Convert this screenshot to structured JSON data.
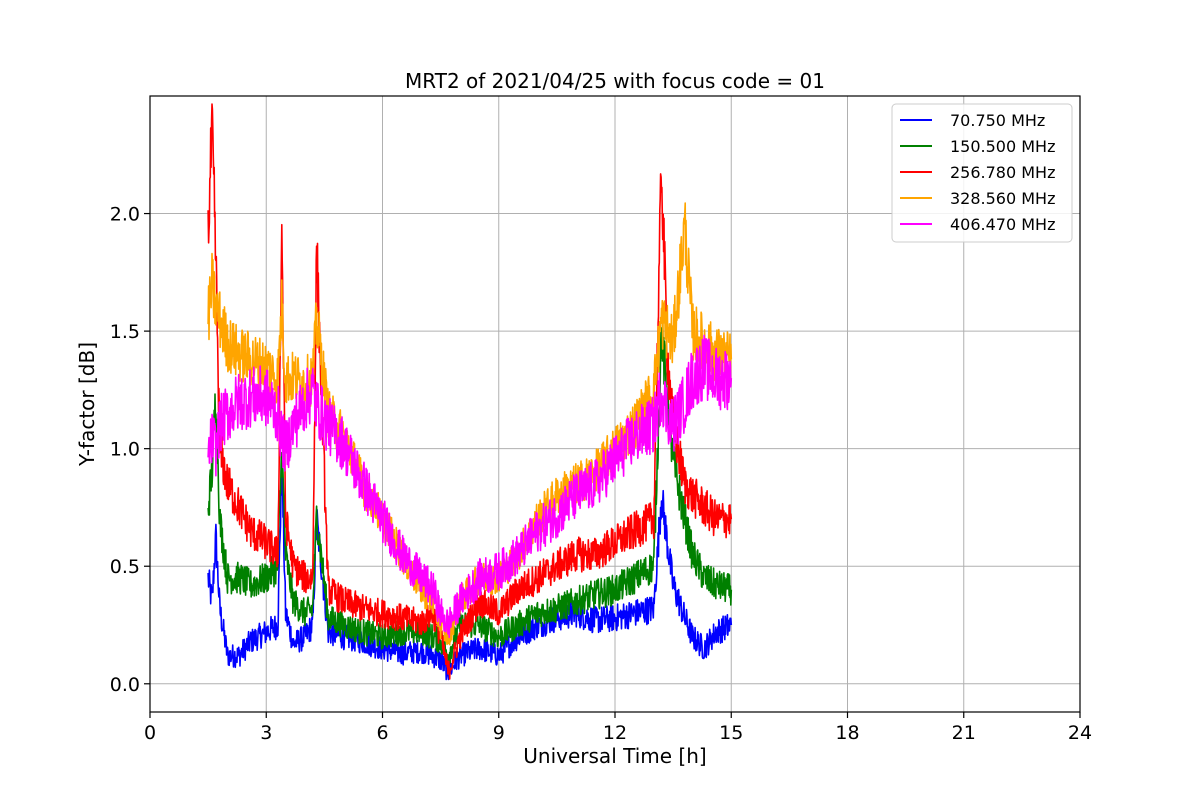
{
  "chart_data": {
    "type": "line",
    "title": "MRT2 of 2021/04/25 with focus code = 01",
    "xlabel": "Universal Time [h]",
    "ylabel": "Y-factor [dB]",
    "xlim": [
      0,
      24
    ],
    "ylim": [
      -0.12,
      2.5
    ],
    "xticks": [
      0,
      3,
      6,
      9,
      12,
      15,
      18,
      21,
      24
    ],
    "xtick_labels": [
      "0",
      "3",
      "6",
      "9",
      "12",
      "15",
      "18",
      "21",
      "24"
    ],
    "yticks": [
      0.0,
      0.5,
      1.0,
      1.5,
      2.0
    ],
    "ytick_labels": [
      "0.0",
      "0.5",
      "1.0",
      "1.5",
      "2.0"
    ],
    "grid": true,
    "legend_position": "top-right",
    "x": [
      1.5,
      1.6,
      1.7,
      1.8,
      2.0,
      2.3,
      2.6,
      3.0,
      3.3,
      3.4,
      3.5,
      3.7,
      4.0,
      4.2,
      4.3,
      4.6,
      5.0,
      5.5,
      6.0,
      6.5,
      7.0,
      7.3,
      7.5,
      7.7,
      8.0,
      8.5,
      9.0,
      9.5,
      10.0,
      10.5,
      11.0,
      11.5,
      12.0,
      12.5,
      13.0,
      13.2,
      13.35,
      13.5,
      13.8,
      14.0,
      14.3,
      14.6,
      15.0
    ],
    "series": [
      {
        "name": "  70.750 MHz",
        "color": "#0000ff",
        "values": [
          0.45,
          0.35,
          0.62,
          0.32,
          0.12,
          0.12,
          0.18,
          0.22,
          0.25,
          0.95,
          0.3,
          0.17,
          0.2,
          0.25,
          0.7,
          0.22,
          0.2,
          0.18,
          0.15,
          0.13,
          0.14,
          0.12,
          0.1,
          0.05,
          0.12,
          0.15,
          0.12,
          0.2,
          0.25,
          0.28,
          0.3,
          0.27,
          0.28,
          0.3,
          0.32,
          0.8,
          0.6,
          0.42,
          0.28,
          0.2,
          0.15,
          0.22,
          0.25
        ]
      },
      {
        "name": "150.500 MHz",
        "color": "#008000",
        "values": [
          0.75,
          0.9,
          1.25,
          0.7,
          0.45,
          0.45,
          0.42,
          0.45,
          0.5,
          1.0,
          0.55,
          0.35,
          0.3,
          0.32,
          0.72,
          0.28,
          0.25,
          0.22,
          0.2,
          0.22,
          0.22,
          0.2,
          0.18,
          0.12,
          0.25,
          0.25,
          0.2,
          0.25,
          0.3,
          0.32,
          0.35,
          0.38,
          0.4,
          0.45,
          0.5,
          1.5,
          1.2,
          0.95,
          0.7,
          0.55,
          0.45,
          0.42,
          0.4
        ]
      },
      {
        "name": "256.780 MHz",
        "color": "#ff0000",
        "values": [
          1.9,
          2.35,
          1.8,
          1.0,
          0.85,
          0.75,
          0.65,
          0.6,
          0.55,
          1.95,
          0.7,
          0.5,
          0.45,
          0.45,
          1.85,
          0.4,
          0.35,
          0.32,
          0.3,
          0.28,
          0.26,
          0.3,
          0.2,
          0.05,
          0.2,
          0.35,
          0.3,
          0.4,
          0.45,
          0.5,
          0.55,
          0.55,
          0.6,
          0.65,
          0.7,
          2.2,
          1.4,
          1.1,
          0.85,
          0.8,
          0.75,
          0.7,
          0.7
        ]
      },
      {
        "name": "328.560 MHz",
        "color": "#ffa500",
        "values": [
          1.55,
          1.7,
          1.6,
          1.55,
          1.45,
          1.4,
          1.38,
          1.35,
          1.3,
          1.6,
          1.3,
          1.3,
          1.28,
          1.3,
          1.55,
          1.15,
          1.05,
          0.85,
          0.7,
          0.55,
          0.4,
          0.35,
          0.25,
          0.2,
          0.35,
          0.45,
          0.45,
          0.55,
          0.7,
          0.8,
          0.85,
          0.9,
          1.0,
          1.1,
          1.25,
          1.55,
          1.5,
          1.45,
          1.95,
          1.5,
          1.45,
          1.4,
          1.38
        ]
      },
      {
        "name": "406.470 MHz",
        "color": "#ff00ff",
        "values": [
          0.95,
          1.05,
          1.0,
          1.1,
          1.15,
          1.2,
          1.22,
          1.22,
          1.15,
          1.05,
          1.0,
          1.1,
          1.2,
          1.25,
          1.18,
          1.1,
          1.02,
          0.85,
          0.7,
          0.55,
          0.45,
          0.4,
          0.3,
          0.25,
          0.35,
          0.45,
          0.48,
          0.55,
          0.65,
          0.72,
          0.8,
          0.85,
          0.95,
          1.05,
          1.1,
          1.25,
          1.15,
          1.1,
          1.2,
          1.3,
          1.35,
          1.3,
          1.3
        ]
      }
    ]
  }
}
